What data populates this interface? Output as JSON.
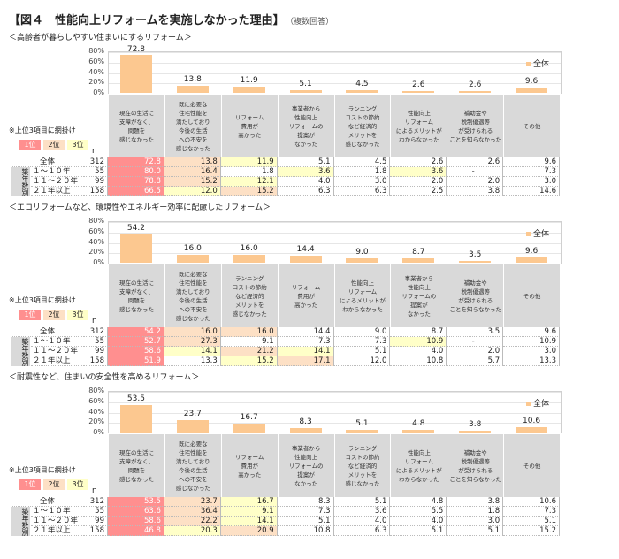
{
  "header": {
    "title": "【図４　性能向上リフォームを実施しなかった理由】",
    "note": "（複数回答）"
  },
  "legend_label": "全体",
  "rank_note": "※上位3項目に網掛け",
  "rank_badges": [
    "1位",
    "2位",
    "3位"
  ],
  "n_label": "n",
  "group_label": "築年数別",
  "row_labels": [
    "全体",
    "１～１０年",
    "１１～２０年",
    "２１年以上"
  ],
  "n_values": [
    "312",
    "55",
    "99",
    "158"
  ],
  "colors": {
    "bar": "#fcc890",
    "rank1": "#ff8f8f",
    "rank2": "#fde0c5",
    "rank3": "#ffffc8",
    "header": "#d9d9d9"
  },
  "chart_data": [
    {
      "type": "bar",
      "title": "＜高齢者が暮らしやすい住まいにするリフォーム＞",
      "yticks": [
        "80%",
        "60%",
        "40%",
        "20%",
        "0%"
      ],
      "ylim": [
        0,
        80
      ],
      "series": [
        {
          "name": "全体"
        }
      ],
      "categories": [
        "現在の生活に\n支障がなく、\n問題を\n感じなかった",
        "既に必要な\n住宅性能を\n満たしており\n今後の生活\nへの不安を\n感じなかった",
        "リフォーム\n費用が\n高かった",
        "事業者から\n性能向上\nリフォームの\n提案が\nなかった",
        "ランニング\nコストの節約\nなど経済的\nメリットを\n感じなかった",
        "性能向上\nリフォーム\nによるメリットが\nわからなかった",
        "補助金や\n税制優遇等\nが受けられる\nことを知らなかった",
        "その他"
      ],
      "values": [
        72.8,
        13.8,
        11.9,
        5.1,
        4.5,
        2.6,
        2.6,
        9.6
      ],
      "table": [
        [
          "72.8",
          "13.8",
          "11.9",
          "5.1",
          "4.5",
          "2.6",
          "2.6",
          "9.6"
        ],
        [
          "80.0",
          "16.4",
          "1.8",
          "3.6",
          "1.8",
          "3.6",
          "-",
          "7.3"
        ],
        [
          "78.8",
          "15.2",
          "12.1",
          "4.0",
          "3.0",
          "2.0",
          "2.0",
          "3.0"
        ],
        [
          "66.5",
          "12.0",
          "15.2",
          "6.3",
          "6.3",
          "2.5",
          "3.8",
          "14.6"
        ]
      ],
      "ranks": [
        [
          1,
          2,
          3,
          0,
          0,
          0,
          0,
          0
        ],
        [
          1,
          2,
          0,
          3,
          0,
          3,
          0,
          0
        ],
        [
          1,
          2,
          3,
          0,
          0,
          0,
          0,
          0
        ],
        [
          1,
          3,
          2,
          0,
          0,
          0,
          0,
          0
        ]
      ]
    },
    {
      "type": "bar",
      "title": "＜エコリフォームなど、環境性やエネルギー効率に配慮したリフォーム＞",
      "yticks": [
        "80%",
        "60%",
        "40%",
        "20%",
        "0%"
      ],
      "ylim": [
        0,
        80
      ],
      "series": [
        {
          "name": "全体"
        }
      ],
      "categories": [
        "現在の生活に\n支障がなく、\n問題を\n感じなかった",
        "既に必要な\n住宅性能を\n満たしており\n今後の生活\nへの不安を\n感じなかった",
        "ランニング\nコストの節約\nなど経済的\nメリットを\n感じなかった",
        "リフォーム\n費用が\n高かった",
        "性能向上\nリフォーム\nによるメリットが\nわからなかった",
        "事業者から\n性能向上\nリフォームの\n提案が\nなかった",
        "補助金や\n税制優遇等\nが受けられる\nことを知らなかった",
        "その他"
      ],
      "values": [
        54.2,
        16.0,
        16.0,
        14.4,
        9.0,
        8.7,
        3.5,
        9.6
      ],
      "table": [
        [
          "54.2",
          "16.0",
          "16.0",
          "14.4",
          "9.0",
          "8.7",
          "3.5",
          "9.6"
        ],
        [
          "52.7",
          "27.3",
          "9.1",
          "7.3",
          "7.3",
          "10.9",
          "-",
          "10.9"
        ],
        [
          "58.6",
          "14.1",
          "21.2",
          "14.1",
          "5.1",
          "4.0",
          "2.0",
          "3.0"
        ],
        [
          "51.9",
          "13.3",
          "15.2",
          "17.1",
          "12.0",
          "10.8",
          "5.7",
          "13.3"
        ]
      ],
      "ranks": [
        [
          1,
          2,
          2,
          0,
          0,
          0,
          0,
          0
        ],
        [
          1,
          2,
          0,
          0,
          0,
          3,
          0,
          0
        ],
        [
          1,
          3,
          2,
          3,
          0,
          0,
          0,
          0
        ],
        [
          1,
          0,
          3,
          2,
          0,
          0,
          0,
          0
        ]
      ]
    },
    {
      "type": "bar",
      "title": "＜耐震性など、住まいの安全性を高めるリフォーム＞",
      "yticks": [
        "80%",
        "60%",
        "40%",
        "20%",
        "0%"
      ],
      "ylim": [
        0,
        80
      ],
      "series": [
        {
          "name": "全体"
        }
      ],
      "categories": [
        "現在の生活に\n支障がなく、\n問題を\n感じなかった",
        "既に必要な\n住宅性能を\n満たしており\n今後の生活\nへの不安を\n感じなかった",
        "リフォーム\n費用が\n高かった",
        "事業者から\n性能向上\nリフォームの\n提案が\nなかった",
        "ランニング\nコストの節約\nなど経済的\nメリットを\n感じなかった",
        "性能向上\nリフォーム\nによるメリットが\nわからなかった",
        "補助金や\n税制優遇等\nが受けられる\nことを知らなかった",
        "その他"
      ],
      "values": [
        53.5,
        23.7,
        16.7,
        8.3,
        5.1,
        4.8,
        3.8,
        10.6
      ],
      "table": [
        [
          "53.5",
          "23.7",
          "16.7",
          "8.3",
          "5.1",
          "4.8",
          "3.8",
          "10.6"
        ],
        [
          "63.6",
          "36.4",
          "9.1",
          "7.3",
          "3.6",
          "5.5",
          "1.8",
          "7.3"
        ],
        [
          "58.6",
          "22.2",
          "14.1",
          "5.1",
          "4.0",
          "4.0",
          "3.0",
          "5.1"
        ],
        [
          "46.8",
          "20.3",
          "20.9",
          "10.8",
          "6.3",
          "5.1",
          "5.1",
          "15.2"
        ]
      ],
      "ranks": [
        [
          1,
          2,
          3,
          0,
          0,
          0,
          0,
          0
        ],
        [
          1,
          2,
          3,
          0,
          0,
          0,
          0,
          0
        ],
        [
          1,
          2,
          3,
          0,
          0,
          0,
          0,
          0
        ],
        [
          1,
          3,
          2,
          0,
          0,
          0,
          0,
          0
        ]
      ]
    }
  ]
}
